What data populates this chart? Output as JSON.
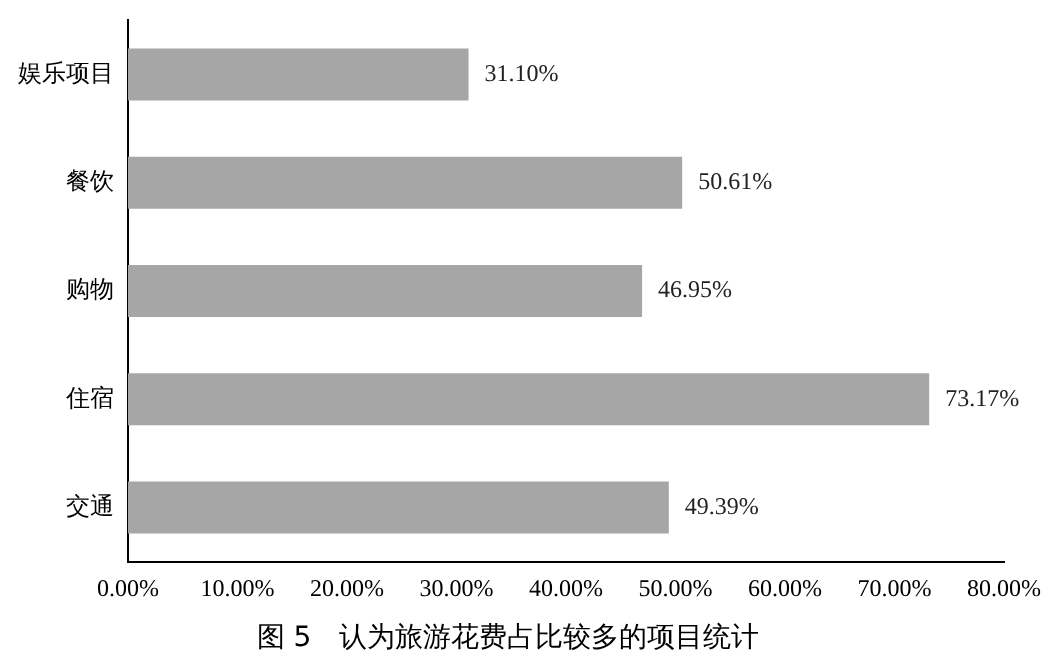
{
  "chart_data": {
    "type": "bar",
    "orientation": "horizontal",
    "title": "图 5　认为旅游花费占比较多的项目统计",
    "categories": [
      "娱乐项目",
      "餐饮",
      "购物",
      "住宿",
      "交通"
    ],
    "values": [
      31.1,
      50.61,
      46.95,
      73.17,
      49.39
    ],
    "value_labels": [
      "31.10%",
      "50.61%",
      "46.95%",
      "73.17%",
      "49.39%"
    ],
    "color": "#a6a6a6",
    "xlim": [
      0,
      80
    ],
    "xticks": [
      {
        "value": 0,
        "label": "0.00%"
      },
      {
        "value": 10,
        "label": "10.00%"
      },
      {
        "value": 20,
        "label": "20.00%"
      },
      {
        "value": 30,
        "label": "30.00%"
      },
      {
        "value": 40,
        "label": "40.00%"
      },
      {
        "value": 50,
        "label": "50.00%"
      },
      {
        "value": 60,
        "label": "60.00%"
      },
      {
        "value": 70,
        "label": "70.00%"
      },
      {
        "value": 80,
        "label": "80.00%"
      }
    ],
    "grid": false,
    "legend": false
  }
}
